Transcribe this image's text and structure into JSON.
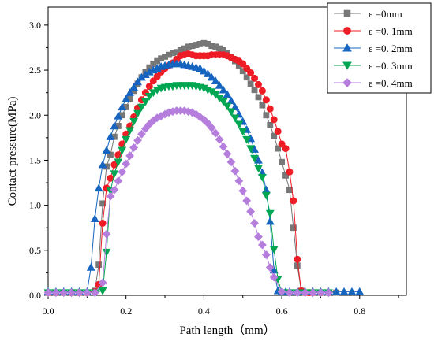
{
  "chart_data": {
    "type": "line",
    "xlabel": "Path length（mm）",
    "ylabel": "Contact pressure(MPa)",
    "xlim": [
      0,
      0.92
    ],
    "ylim": [
      0,
      3.2
    ],
    "xticks": [
      0.0,
      0.2,
      0.4,
      0.6,
      0.8
    ],
    "xtick_labels": [
      "0.0",
      "0.2",
      "0.4",
      "0.6",
      "0.8"
    ],
    "yticks": [
      0.0,
      0.5,
      1.0,
      1.5,
      2.0,
      2.5,
      3.0
    ],
    "ytick_labels": [
      "0.0",
      "0.5",
      "1.0",
      "1.5",
      "2.0",
      "2.5",
      "3.0"
    ],
    "grid": false,
    "legend_position": "top-right",
    "series": [
      {
        "name": "ε =0mm",
        "color": "#777777",
        "marker": "square",
        "x": [
          0.0,
          0.02,
          0.04,
          0.06,
          0.08,
          0.1,
          0.12,
          0.13,
          0.14,
          0.15,
          0.16,
          0.17,
          0.18,
          0.19,
          0.2,
          0.21,
          0.22,
          0.23,
          0.24,
          0.25,
          0.26,
          0.27,
          0.28,
          0.29,
          0.3,
          0.31,
          0.32,
          0.33,
          0.34,
          0.35,
          0.36,
          0.37,
          0.38,
          0.39,
          0.4,
          0.41,
          0.42,
          0.43,
          0.44,
          0.45,
          0.46,
          0.47,
          0.48,
          0.49,
          0.5,
          0.51,
          0.52,
          0.53,
          0.54,
          0.55,
          0.56,
          0.57,
          0.58,
          0.59,
          0.6,
          0.61,
          0.62,
          0.63,
          0.64,
          0.65,
          0.66,
          0.67,
          0.68,
          0.7,
          0.72,
          0.74
        ],
        "y": [
          0.03,
          0.03,
          0.03,
          0.03,
          0.03,
          0.03,
          0.05,
          0.34,
          1.02,
          1.43,
          1.56,
          1.76,
          1.88,
          2.0,
          2.09,
          2.18,
          2.27,
          2.35,
          2.42,
          2.48,
          2.53,
          2.57,
          2.6,
          2.63,
          2.65,
          2.67,
          2.69,
          2.7,
          2.72,
          2.74,
          2.76,
          2.77,
          2.78,
          2.79,
          2.8,
          2.79,
          2.77,
          2.76,
          2.74,
          2.72,
          2.69,
          2.65,
          2.6,
          2.55,
          2.49,
          2.42,
          2.35,
          2.28,
          2.2,
          2.11,
          2.0,
          1.89,
          1.77,
          1.63,
          1.48,
          1.33,
          1.17,
          0.75,
          0.33,
          0.05,
          0.03,
          0.03,
          0.03,
          0.03,
          0.03,
          0.03
        ]
      },
      {
        "name": "ε =0. 1mm",
        "color": "#ee1c25",
        "marker": "circle",
        "x": [
          0.0,
          0.02,
          0.04,
          0.06,
          0.08,
          0.1,
          0.12,
          0.13,
          0.14,
          0.15,
          0.16,
          0.17,
          0.18,
          0.19,
          0.2,
          0.21,
          0.22,
          0.23,
          0.24,
          0.25,
          0.26,
          0.27,
          0.28,
          0.29,
          0.3,
          0.31,
          0.32,
          0.33,
          0.34,
          0.35,
          0.36,
          0.37,
          0.38,
          0.39,
          0.4,
          0.41,
          0.42,
          0.43,
          0.44,
          0.45,
          0.46,
          0.47,
          0.48,
          0.49,
          0.5,
          0.51,
          0.52,
          0.53,
          0.54,
          0.55,
          0.56,
          0.57,
          0.58,
          0.59,
          0.6,
          0.61,
          0.62,
          0.63,
          0.64,
          0.65,
          0.66,
          0.67,
          0.68,
          0.7,
          0.72
        ],
        "y": [
          0.03,
          0.03,
          0.03,
          0.03,
          0.03,
          0.03,
          0.04,
          0.12,
          0.8,
          1.19,
          1.3,
          1.45,
          1.56,
          1.68,
          1.79,
          1.88,
          1.98,
          2.08,
          2.17,
          2.25,
          2.32,
          2.38,
          2.43,
          2.48,
          2.52,
          2.55,
          2.58,
          2.62,
          2.66,
          2.67,
          2.68,
          2.67,
          2.66,
          2.66,
          2.66,
          2.66,
          2.67,
          2.67,
          2.67,
          2.67,
          2.66,
          2.64,
          2.62,
          2.6,
          2.57,
          2.52,
          2.47,
          2.41,
          2.34,
          2.27,
          2.17,
          2.07,
          1.95,
          1.82,
          1.68,
          1.63,
          1.37,
          1.05,
          0.4,
          0.05,
          0.03,
          0.03,
          0.03,
          0.03,
          0.03
        ]
      },
      {
        "name": "ε =0. 2mm",
        "color": "#1565c0",
        "marker": "triangle-up",
        "x": [
          0.0,
          0.02,
          0.04,
          0.06,
          0.08,
          0.1,
          0.11,
          0.12,
          0.13,
          0.14,
          0.15,
          0.16,
          0.17,
          0.18,
          0.19,
          0.2,
          0.21,
          0.22,
          0.23,
          0.24,
          0.25,
          0.26,
          0.27,
          0.28,
          0.29,
          0.3,
          0.31,
          0.32,
          0.33,
          0.34,
          0.35,
          0.36,
          0.37,
          0.38,
          0.39,
          0.4,
          0.41,
          0.42,
          0.43,
          0.44,
          0.45,
          0.46,
          0.47,
          0.48,
          0.49,
          0.5,
          0.51,
          0.52,
          0.53,
          0.54,
          0.55,
          0.56,
          0.57,
          0.58,
          0.59,
          0.6,
          0.61,
          0.62,
          0.64,
          0.66,
          0.68,
          0.7,
          0.72,
          0.74,
          0.76,
          0.78,
          0.8
        ],
        "y": [
          0.04,
          0.04,
          0.04,
          0.04,
          0.04,
          0.04,
          0.31,
          0.85,
          1.19,
          1.45,
          1.61,
          1.76,
          1.88,
          1.99,
          2.09,
          2.18,
          2.25,
          2.31,
          2.37,
          2.42,
          2.45,
          2.48,
          2.5,
          2.52,
          2.54,
          2.55,
          2.56,
          2.57,
          2.57,
          2.57,
          2.56,
          2.55,
          2.54,
          2.53,
          2.52,
          2.49,
          2.46,
          2.42,
          2.38,
          2.33,
          2.28,
          2.23,
          2.16,
          2.09,
          2.01,
          1.93,
          1.84,
          1.74,
          1.62,
          1.5,
          1.36,
          1.17,
          0.82,
          0.28,
          0.05,
          0.04,
          0.04,
          0.04,
          0.04,
          0.04,
          0.04,
          0.04,
          0.04,
          0.04,
          0.04,
          0.04,
          0.04
        ]
      },
      {
        "name": "ε =0. 3mm",
        "color": "#00a651",
        "marker": "triangle-down",
        "x": [
          0.0,
          0.02,
          0.04,
          0.06,
          0.08,
          0.1,
          0.12,
          0.14,
          0.15,
          0.16,
          0.17,
          0.18,
          0.19,
          0.2,
          0.21,
          0.22,
          0.23,
          0.24,
          0.25,
          0.26,
          0.27,
          0.28,
          0.29,
          0.3,
          0.31,
          0.32,
          0.33,
          0.34,
          0.35,
          0.36,
          0.37,
          0.38,
          0.39,
          0.4,
          0.41,
          0.42,
          0.43,
          0.44,
          0.45,
          0.46,
          0.47,
          0.48,
          0.49,
          0.5,
          0.51,
          0.52,
          0.53,
          0.54,
          0.55,
          0.56,
          0.57,
          0.58,
          0.59,
          0.6,
          0.62,
          0.64,
          0.66,
          0.68,
          0.7,
          0.72
        ],
        "y": [
          0.03,
          0.03,
          0.03,
          0.03,
          0.03,
          0.03,
          0.03,
          0.05,
          0.48,
          1.16,
          1.35,
          1.48,
          1.61,
          1.73,
          1.83,
          1.93,
          2.02,
          2.09,
          2.15,
          2.21,
          2.25,
          2.28,
          2.3,
          2.31,
          2.32,
          2.32,
          2.33,
          2.33,
          2.33,
          2.33,
          2.33,
          2.32,
          2.31,
          2.3,
          2.28,
          2.26,
          2.23,
          2.19,
          2.15,
          2.1,
          2.04,
          1.97,
          1.9,
          1.82,
          1.73,
          1.63,
          1.52,
          1.41,
          1.31,
          1.11,
          0.91,
          0.51,
          0.18,
          0.03,
          0.03,
          0.03,
          0.03,
          0.03,
          0.03,
          0.03
        ]
      },
      {
        "name": "ε =0. 4mm",
        "color": "#b57edc",
        "marker": "diamond",
        "x": [
          0.0,
          0.02,
          0.04,
          0.06,
          0.08,
          0.1,
          0.12,
          0.14,
          0.15,
          0.16,
          0.17,
          0.18,
          0.19,
          0.2,
          0.21,
          0.22,
          0.23,
          0.24,
          0.25,
          0.26,
          0.27,
          0.28,
          0.29,
          0.3,
          0.31,
          0.32,
          0.33,
          0.34,
          0.35,
          0.36,
          0.37,
          0.38,
          0.39,
          0.4,
          0.41,
          0.42,
          0.43,
          0.44,
          0.45,
          0.46,
          0.47,
          0.48,
          0.49,
          0.5,
          0.51,
          0.52,
          0.53,
          0.54,
          0.55,
          0.56,
          0.57,
          0.58,
          0.6,
          0.62,
          0.64,
          0.66,
          0.68,
          0.7,
          0.72
        ],
        "y": [
          0.03,
          0.03,
          0.03,
          0.03,
          0.03,
          0.03,
          0.03,
          0.14,
          0.68,
          1.1,
          1.17,
          1.27,
          1.37,
          1.46,
          1.55,
          1.64,
          1.72,
          1.79,
          1.85,
          1.9,
          1.94,
          1.97,
          1.99,
          2.01,
          2.03,
          2.04,
          2.05,
          2.05,
          2.05,
          2.04,
          2.03,
          2.01,
          1.98,
          1.95,
          1.91,
          1.86,
          1.8,
          1.73,
          1.65,
          1.57,
          1.48,
          1.38,
          1.27,
          1.16,
          1.05,
          0.93,
          0.8,
          0.65,
          0.56,
          0.45,
          0.31,
          0.2,
          0.04,
          0.03,
          0.03,
          0.03,
          0.03,
          0.03,
          0.03
        ]
      }
    ]
  }
}
